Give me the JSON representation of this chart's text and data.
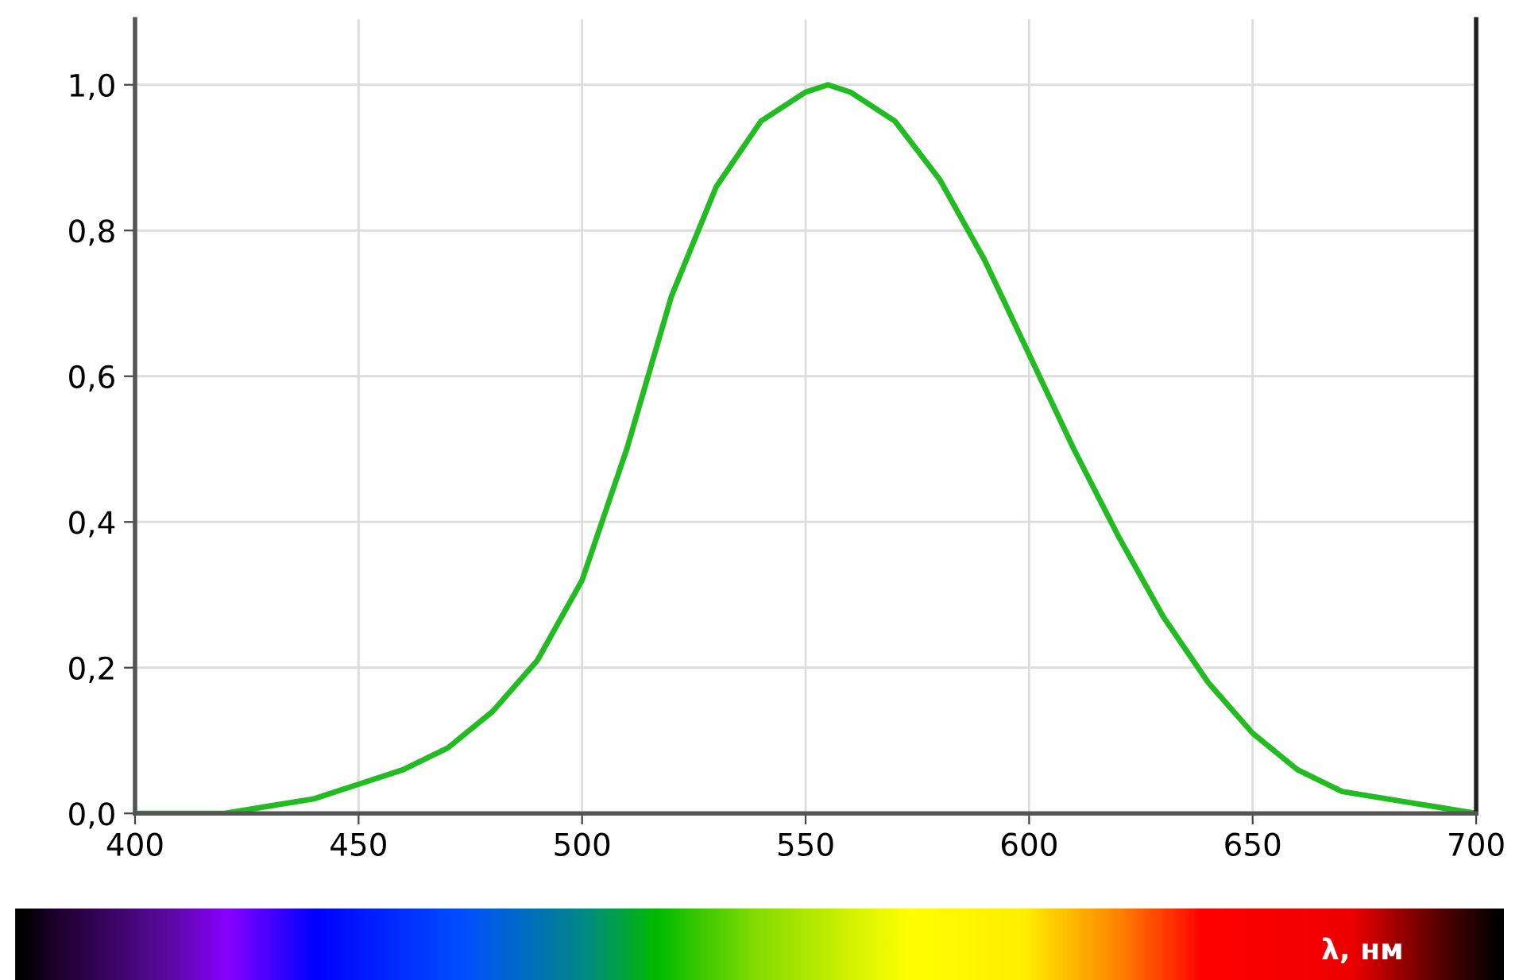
{
  "chart_data": {
    "type": "line",
    "x": [
      400,
      410,
      420,
      430,
      440,
      450,
      460,
      470,
      480,
      490,
      500,
      510,
      520,
      530,
      540,
      550,
      555,
      560,
      570,
      580,
      590,
      600,
      610,
      620,
      630,
      640,
      650,
      660,
      670,
      680,
      690,
      700
    ],
    "series": [
      {
        "color": "#22bb22",
        "values": [
          0.0,
          0.0,
          0.0,
          0.01,
          0.02,
          0.04,
          0.06,
          0.09,
          0.14,
          0.21,
          0.32,
          0.5,
          0.71,
          0.86,
          0.95,
          0.99,
          1.0,
          0.99,
          0.95,
          0.87,
          0.76,
          0.63,
          0.5,
          0.38,
          0.27,
          0.18,
          0.11,
          0.06,
          0.03,
          0.02,
          0.01,
          0.0
        ]
      }
    ],
    "xlabel": "λ, нм",
    "xlim": [
      400,
      700
    ],
    "ylim": [
      0,
      1.09
    ],
    "xticks": [
      400,
      450,
      500,
      550,
      600,
      650,
      700
    ],
    "yticks": [
      {
        "value": 0,
        "label": "0,0"
      },
      {
        "value": 0.2,
        "label": "0,2"
      },
      {
        "value": 0.4,
        "label": "0,4"
      },
      {
        "value": 0.6,
        "label": "0,6"
      },
      {
        "value": 0.8,
        "label": "0,8"
      },
      {
        "value": 1.0,
        "label": "1,0"
      }
    ],
    "grid": true,
    "marker": "none",
    "line_style": "solid"
  }
}
